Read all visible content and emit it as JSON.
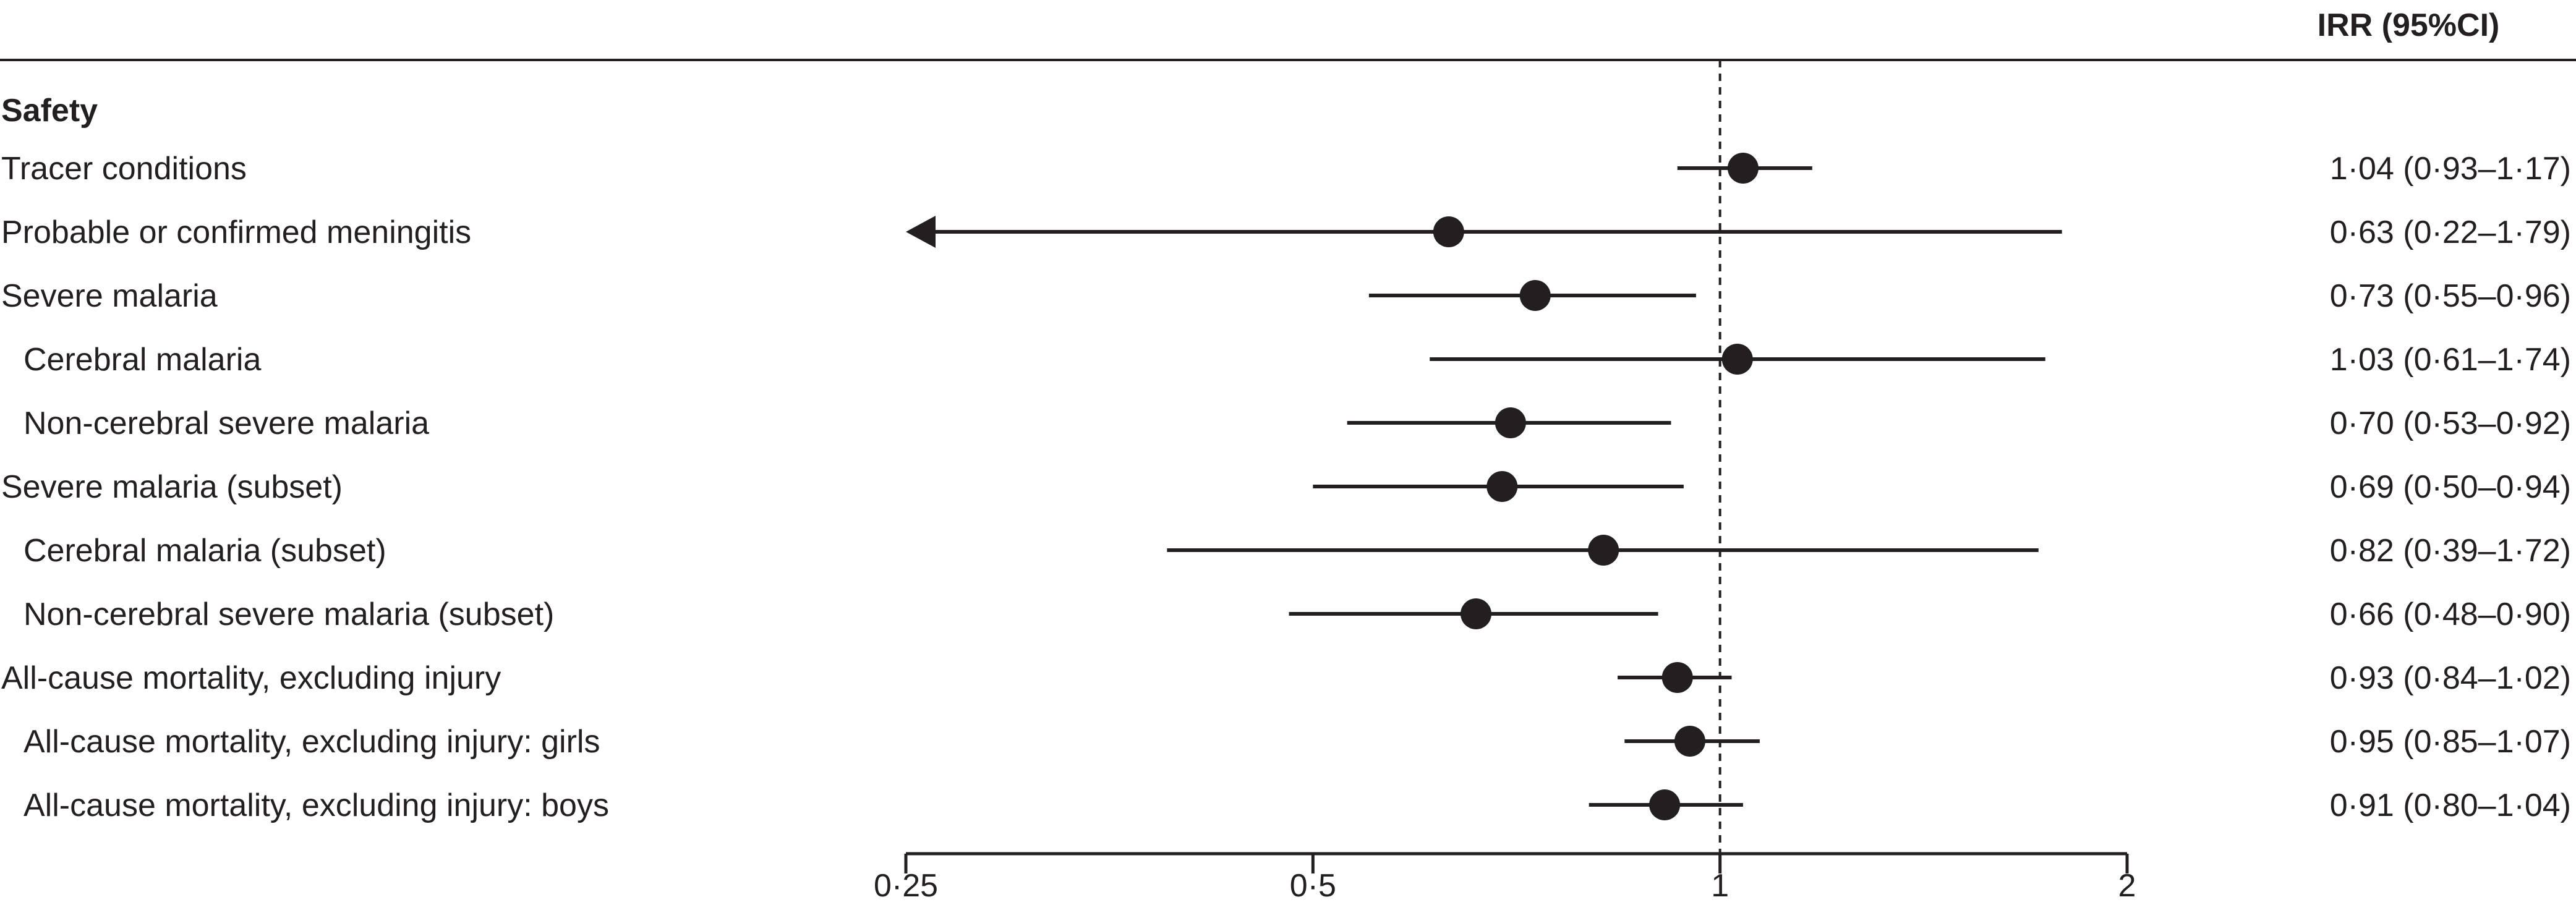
{
  "chart_data": {
    "type": "forest",
    "value_header": "IRR (95%CI)",
    "section": "Safety",
    "x_scale": "log",
    "xlim": [
      0.25,
      2
    ],
    "xticks": [
      0.25,
      0.5,
      1,
      2
    ],
    "xtick_labels": [
      "0·25",
      "0·5",
      "1",
      "2"
    ],
    "reference_line": 1,
    "rows": [
      {
        "label": "Tracer conditions",
        "indent": false,
        "estimate": 1.04,
        "lower": 0.93,
        "upper": 1.17,
        "text": "1·04 (0·93–1·17)"
      },
      {
        "label": "Probable or confirmed meningitis",
        "indent": false,
        "estimate": 0.63,
        "lower": 0.22,
        "upper": 1.79,
        "text": "0·63 (0·22–1·79)",
        "lower_clipped": true
      },
      {
        "label": "Severe malaria",
        "indent": false,
        "estimate": 0.73,
        "lower": 0.55,
        "upper": 0.96,
        "text": "0·73 (0·55–0·96)"
      },
      {
        "label": "Cerebral malaria",
        "indent": true,
        "estimate": 1.03,
        "lower": 0.61,
        "upper": 1.74,
        "text": "1·03 (0·61–1·74)"
      },
      {
        "label": "Non-cerebral severe malaria",
        "indent": true,
        "estimate": 0.7,
        "lower": 0.53,
        "upper": 0.92,
        "text": "0·70 (0·53–0·92)"
      },
      {
        "label": "Severe malaria (subset)",
        "indent": false,
        "estimate": 0.69,
        "lower": 0.5,
        "upper": 0.94,
        "text": "0·69 (0·50–0·94)"
      },
      {
        "label": "Cerebral malaria (subset)",
        "indent": true,
        "estimate": 0.82,
        "lower": 0.39,
        "upper": 1.72,
        "text": "0·82 (0·39–1·72)"
      },
      {
        "label": "Non-cerebral severe malaria (subset)",
        "indent": true,
        "estimate": 0.66,
        "lower": 0.48,
        "upper": 0.9,
        "text": "0·66 (0·48–0·90)"
      },
      {
        "label": "All-cause mortality, excluding injury",
        "indent": false,
        "estimate": 0.93,
        "lower": 0.84,
        "upper": 1.02,
        "text": "0·93 (0·84–1·02)"
      },
      {
        "label": "All-cause mortality, excluding injury: girls",
        "indent": true,
        "estimate": 0.95,
        "lower": 0.85,
        "upper": 1.07,
        "text": "0·95 (0·85–1·07)"
      },
      {
        "label": "All-cause mortality, excluding injury: boys",
        "indent": true,
        "estimate": 0.91,
        "lower": 0.8,
        "upper": 1.04,
        "text": "0·91 (0·80–1·04)"
      }
    ]
  }
}
